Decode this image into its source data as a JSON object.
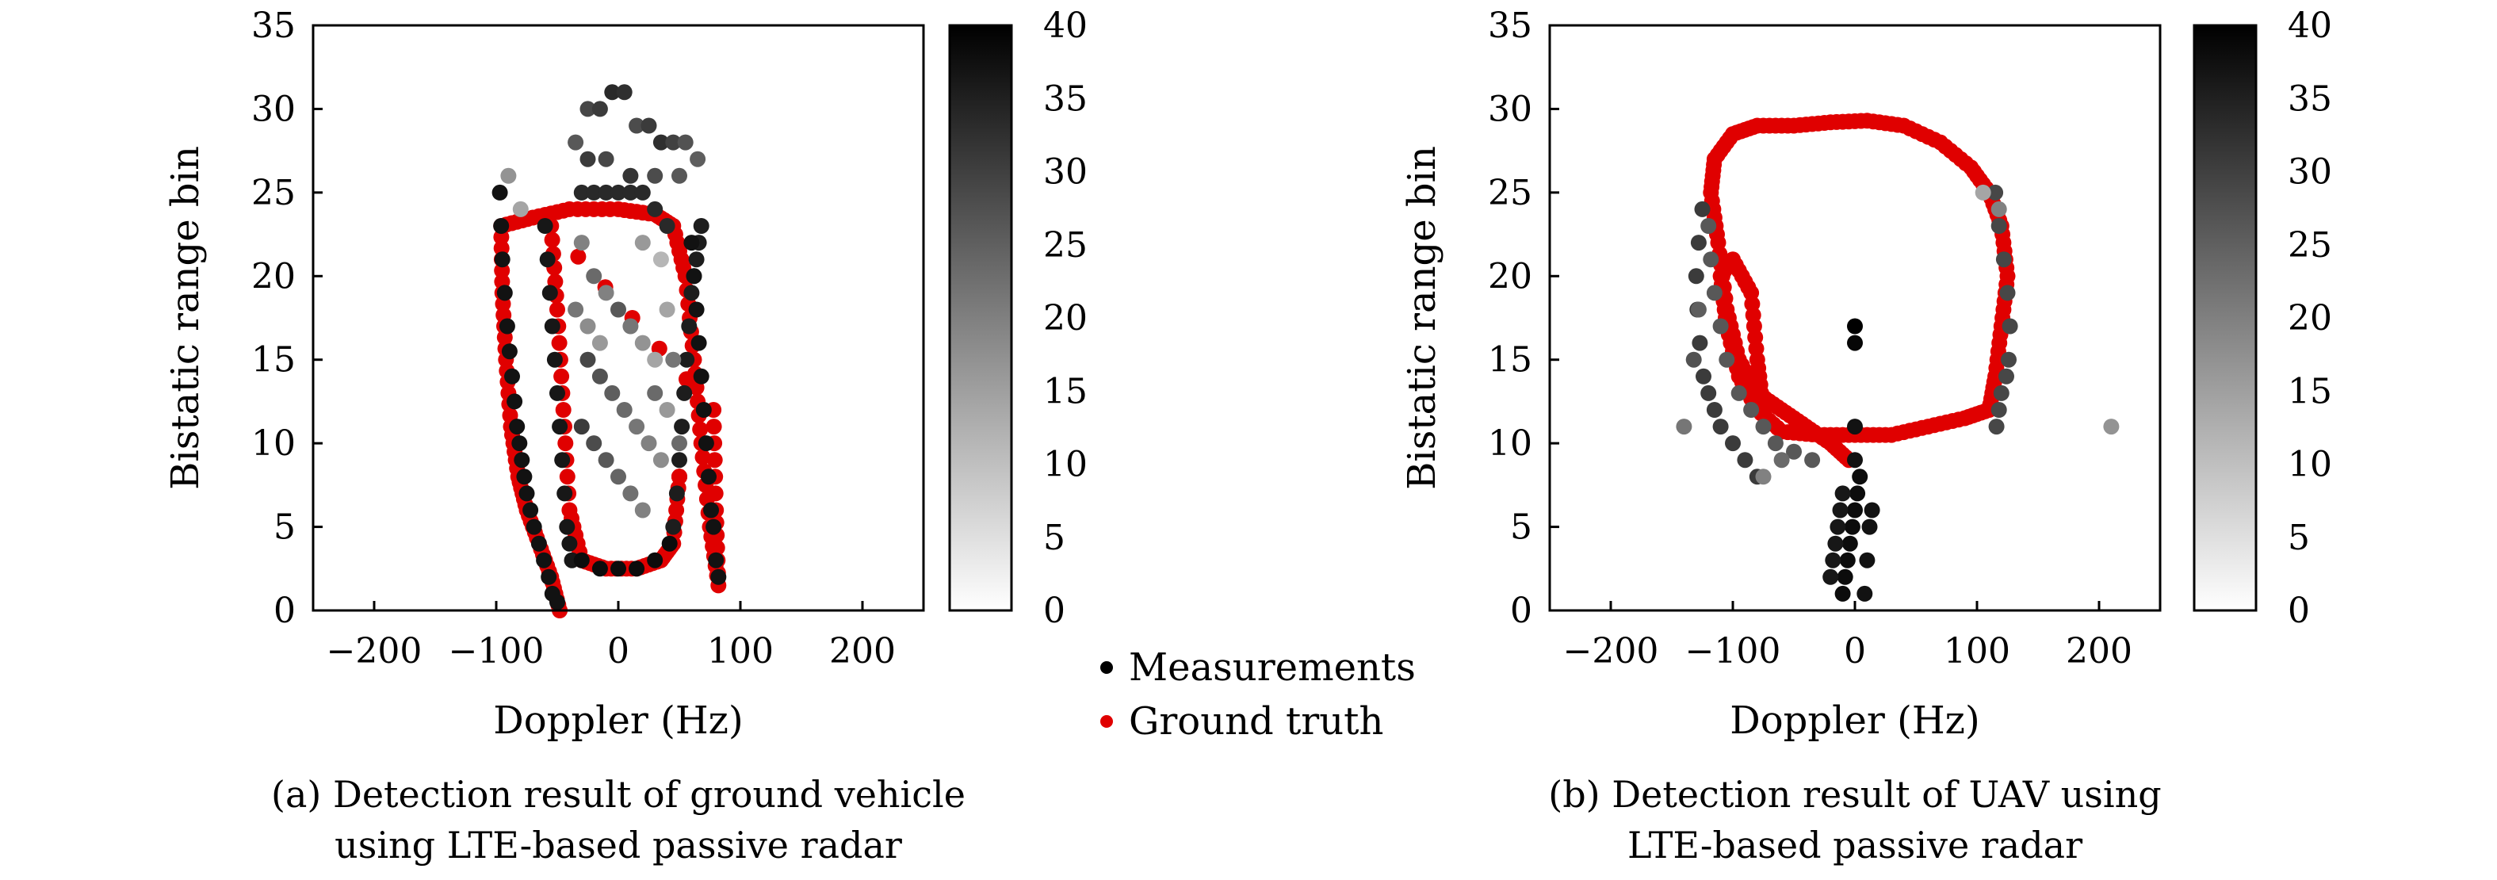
{
  "legend": {
    "items": [
      {
        "label": "Measurements",
        "color": "#000000"
      },
      {
        "label": "Ground truth",
        "color": "#e00000"
      }
    ]
  },
  "chart_data": [
    {
      "type": "scatter",
      "id": "ground-vehicle",
      "xlabel": "Doppler (Hz)",
      "ylabel": "Bistatic range bin",
      "xlim": [
        -250,
        250
      ],
      "ylim": [
        0,
        35
      ],
      "xticks": [
        "−200",
        "−100",
        "0",
        "100",
        "200"
      ],
      "yticks": [
        "0",
        "5",
        "10",
        "15",
        "20",
        "25",
        "30",
        "35"
      ],
      "colorbar": {
        "min": 0,
        "max": 40,
        "ticks": [
          "0",
          "5",
          "10",
          "15",
          "20",
          "25",
          "30",
          "35",
          "40"
        ],
        "colormap": "white-to-black"
      },
      "caption": [
        "(a) Detection result of ground vehicle",
        "using LTE-based passive radar"
      ],
      "ground_truth": [
        [
          -48,
          0
        ],
        [
          -55,
          2
        ],
        [
          -65,
          4
        ],
        [
          -75,
          6
        ],
        [
          -82,
          8
        ],
        [
          -88,
          11
        ],
        [
          -92,
          15
        ],
        [
          -95,
          19
        ],
        [
          -96,
          23
        ],
        [
          -70,
          23.5
        ],
        [
          -40,
          24
        ],
        [
          0,
          24
        ],
        [
          30,
          23.7
        ],
        [
          45,
          23
        ],
        [
          55,
          20
        ],
        [
          62,
          15
        ],
        [
          68,
          10
        ],
        [
          75,
          5
        ],
        [
          82,
          1.5
        ],
        [
          80,
          6
        ],
        [
          78,
          12
        ],
        [
          -55,
          23
        ],
        [
          -50,
          18
        ],
        [
          -45,
          12
        ],
        [
          -40,
          6
        ],
        [
          -30,
          3
        ],
        [
          -10,
          2.5
        ],
        [
          15,
          2.5
        ],
        [
          35,
          3
        ],
        [
          45,
          4
        ],
        [
          50,
          8
        ]
      ],
      "measurement_tracks": [
        {
          "x": [
            -97,
            -96,
            -95,
            -93,
            -91,
            -89,
            -87,
            -85,
            -83,
            -81,
            -79,
            -77,
            -75,
            -72,
            -69,
            -65,
            -61,
            -57,
            -54,
            -50
          ],
          "y": [
            25,
            23,
            21,
            19,
            17,
            15.5,
            14,
            12.5,
            11,
            10,
            9,
            8,
            7,
            6,
            5,
            4,
            3,
            2,
            1,
            0.5
          ],
          "intensity": 37
        },
        {
          "x": [
            -60,
            -58,
            -56,
            -54,
            -52,
            -50,
            -48,
            -46,
            -44,
            -42,
            -40,
            -38
          ],
          "y": [
            23,
            21,
            19,
            17,
            15,
            13,
            11,
            9,
            7,
            5,
            4,
            3
          ],
          "intensity": 36
        },
        {
          "x": [
            -30,
            -15,
            0,
            15,
            30,
            42
          ],
          "y": [
            3,
            2.5,
            2.5,
            2.5,
            3,
            4
          ],
          "intensity": 38
        },
        {
          "x": [
            45,
            48,
            50,
            52,
            54,
            56,
            58,
            60,
            62,
            64,
            66,
            68
          ],
          "y": [
            5,
            7,
            9,
            11,
            13,
            15,
            17,
            19,
            20,
            21,
            22,
            23
          ],
          "intensity": 35
        },
        {
          "x": [
            60,
            62,
            64,
            66,
            68,
            70,
            72,
            74,
            76,
            78,
            80,
            82
          ],
          "y": [
            22,
            20,
            18,
            16,
            14,
            12,
            10,
            8,
            6,
            5,
            3,
            2
          ],
          "intensity": 37
        },
        {
          "x": [
            -30,
            -20,
            -10,
            0,
            10,
            20,
            30,
            40
          ],
          "y": [
            25,
            25,
            25,
            25,
            25,
            25,
            24,
            23
          ],
          "intensity": 33
        }
      ],
      "measurement_scatter": [
        [
          -25,
          30,
          28
        ],
        [
          -15,
          30,
          30
        ],
        [
          -5,
          31,
          33
        ],
        [
          5,
          31,
          32
        ],
        [
          15,
          29,
          27
        ],
        [
          25,
          29,
          30
        ],
        [
          35,
          28,
          32
        ],
        [
          45,
          28,
          29
        ],
        [
          55,
          28,
          26
        ],
        [
          65,
          27,
          24
        ],
        [
          -35,
          28,
          25
        ],
        [
          -25,
          27,
          30
        ],
        [
          -10,
          27,
          28
        ],
        [
          10,
          26,
          31
        ],
        [
          30,
          26,
          27
        ],
        [
          50,
          26,
          25
        ],
        [
          -90,
          26,
          15
        ],
        [
          -80,
          24,
          12
        ],
        [
          -20,
          20,
          22
        ],
        [
          -10,
          19,
          18
        ],
        [
          0,
          18,
          25
        ],
        [
          10,
          17,
          20
        ],
        [
          20,
          16,
          15
        ],
        [
          30,
          15,
          12
        ],
        [
          -25,
          15,
          28
        ],
        [
          -15,
          14,
          26
        ],
        [
          -5,
          13,
          24
        ],
        [
          5,
          12,
          22
        ],
        [
          15,
          11,
          20
        ],
        [
          25,
          10,
          18
        ],
        [
          35,
          9,
          16
        ],
        [
          40,
          12,
          14
        ],
        [
          30,
          13,
          22
        ],
        [
          -30,
          11,
          30
        ],
        [
          -20,
          10,
          27
        ],
        [
          -10,
          9,
          25
        ],
        [
          0,
          8,
          23
        ],
        [
          10,
          7,
          21
        ],
        [
          20,
          6,
          18
        ],
        [
          -35,
          18,
          20
        ],
        [
          -25,
          17,
          16
        ],
        [
          -15,
          16,
          14
        ],
        [
          40,
          18,
          12
        ],
        [
          35,
          21,
          9
        ],
        [
          -30,
          22,
          18
        ],
        [
          20,
          22,
          14
        ],
        [
          45,
          15,
          20
        ],
        [
          50,
          10,
          22
        ]
      ]
    },
    {
      "type": "scatter",
      "id": "uav",
      "xlabel": "Doppler (Hz)",
      "ylabel": "Bistatic range bin",
      "xlim": [
        -250,
        250
      ],
      "ylim": [
        0,
        35
      ],
      "xticks": [
        "−200",
        "−100",
        "0",
        "100",
        "200"
      ],
      "yticks": [
        "0",
        "5",
        "10",
        "15",
        "20",
        "25",
        "30",
        "35"
      ],
      "colorbar": {
        "min": 0,
        "max": 40,
        "ticks": [
          "0",
          "5",
          "10",
          "15",
          "20",
          "25",
          "30",
          "35",
          "40"
        ],
        "colormap": "white-to-black"
      },
      "caption": [
        "(b) Detection result of UAV using",
        "LTE-based passive radar"
      ],
      "ground_truth": [
        [
          -5,
          9
        ],
        [
          -20,
          10
        ],
        [
          -40,
          11
        ],
        [
          -60,
          12
        ],
        [
          -80,
          13
        ],
        [
          -95,
          15
        ],
        [
          -105,
          18
        ],
        [
          -112,
          22
        ],
        [
          -118,
          25
        ],
        [
          -115,
          27
        ],
        [
          -100,
          28.5
        ],
        [
          -80,
          29
        ],
        [
          -50,
          29
        ],
        [
          -20,
          29.2
        ],
        [
          10,
          29.3
        ],
        [
          40,
          29
        ],
        [
          70,
          28
        ],
        [
          95,
          26.5
        ],
        [
          110,
          25
        ],
        [
          120,
          23
        ],
        [
          125,
          20
        ],
        [
          120,
          17
        ],
        [
          115,
          14
        ],
        [
          110,
          12
        ],
        [
          90,
          11.5
        ],
        [
          60,
          11
        ],
        [
          30,
          10.5
        ],
        [
          0,
          10.5
        ],
        [
          -30,
          10.5
        ],
        [
          -60,
          10.7
        ],
        [
          -80,
          12
        ],
        [
          -95,
          14
        ],
        [
          -105,
          17
        ],
        [
          -110,
          20
        ],
        [
          -100,
          21
        ],
        [
          -85,
          19
        ],
        [
          -80,
          15
        ],
        [
          -75,
          12
        ]
      ],
      "measurement_tracks": [
        {
          "x": [
            -125,
            -128,
            -130,
            -129,
            -127,
            -124,
            -120,
            -115,
            -110,
            -100,
            -90,
            -80
          ],
          "y": [
            24,
            22,
            20,
            18,
            16,
            14,
            13,
            12,
            11,
            10,
            9,
            8
          ],
          "intensity": 30
        },
        {
          "x": [
            -120,
            -118,
            -115,
            -110,
            -105,
            -95,
            -85,
            -75,
            -65,
            -50,
            -35
          ],
          "y": [
            23,
            21,
            19,
            17,
            15,
            13,
            12,
            11,
            10,
            9.5,
            9
          ],
          "intensity": 25
        },
        {
          "x": [
            115,
            118,
            122,
            125,
            127,
            126,
            124,
            120,
            118,
            116
          ],
          "y": [
            25,
            23,
            21,
            19,
            17,
            15,
            14,
            13,
            12,
            11
          ],
          "intensity": 28
        },
        {
          "x": [
            -10,
            -8,
            -6,
            -4,
            -2,
            0,
            2,
            4
          ],
          "y": [
            1,
            2,
            3,
            4,
            5,
            6,
            7,
            8
          ],
          "intensity": 38
        },
        {
          "x": [
            -20,
            -18,
            -16,
            -14,
            -12,
            -10
          ],
          "y": [
            2,
            3,
            4,
            5,
            6,
            7
          ],
          "intensity": 36
        },
        {
          "x": [
            8,
            10,
            12,
            14,
            0,
            0
          ],
          "y": [
            1,
            3,
            5,
            6,
            9,
            11
          ],
          "intensity": 37
        }
      ],
      "measurement_scatter": [
        [
          0,
          17,
          40
        ],
        [
          0,
          16,
          39
        ],
        [
          210,
          11,
          15
        ],
        [
          -140,
          11,
          20
        ],
        [
          -75,
          8,
          18
        ],
        [
          -60,
          9,
          22
        ],
        [
          105,
          25,
          12
        ],
        [
          118,
          24,
          18
        ],
        [
          -128,
          18,
          24
        ],
        [
          -132,
          15,
          26
        ]
      ]
    }
  ]
}
